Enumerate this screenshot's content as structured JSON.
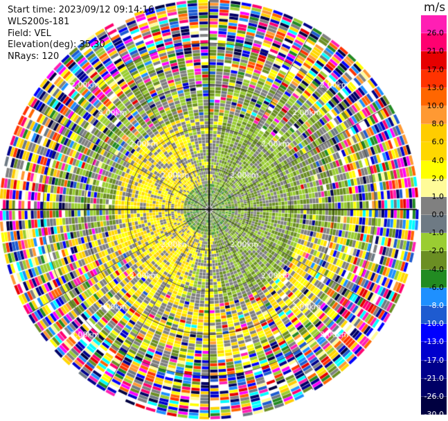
{
  "header": {
    "start_time": "Start time: 2023/09/12 09:14:16",
    "instrument": "WLS200s-181",
    "field": "Field: VEL",
    "elevation": "Elevation(deg): 35.30",
    "nrays": "NRays: 120"
  },
  "colorbar": {
    "unit": "m/s",
    "segments": [
      {
        "color": "#ff1fb4",
        "label": "26.0"
      },
      {
        "color": "#ff0070",
        "label": "21.0"
      },
      {
        "color": "#e60000",
        "label": "17.0"
      },
      {
        "color": "#ff3300",
        "label": "13.0"
      },
      {
        "color": "#ff6600",
        "label": "10.0"
      },
      {
        "color": "#ff9933",
        "label": "8.0"
      },
      {
        "color": "#ffcc00",
        "label": "6.0"
      },
      {
        "color": "#ffd700",
        "label": "4.0"
      },
      {
        "color": "#ffff00",
        "label": "2.0"
      },
      {
        "color": "#fffb99",
        "label": "1.0"
      },
      {
        "color": "#808080",
        "label": "0.0"
      },
      {
        "color": "#6e7a84",
        "label": "-1.0"
      },
      {
        "color": "#9acd32",
        "label": "-2.0"
      },
      {
        "color": "#6b8e23",
        "label": "-4.0"
      },
      {
        "color": "#228b22",
        "label": "-6.0"
      },
      {
        "color": "#1e90ff",
        "label": "-8.0"
      },
      {
        "color": "#1e5bd0",
        "label": "-10.0"
      },
      {
        "color": "#0000ff",
        "label": "-13.0"
      },
      {
        "color": "#0000cd",
        "label": "-17.0"
      },
      {
        "color": "#00008b",
        "label": "-21.0"
      },
      {
        "color": "#000066",
        "label": "-26.0"
      },
      {
        "color": "#000040",
        "label": "-30.0"
      }
    ]
  },
  "range_labels": [
    "2.00km",
    "1.00km"
  ]
}
